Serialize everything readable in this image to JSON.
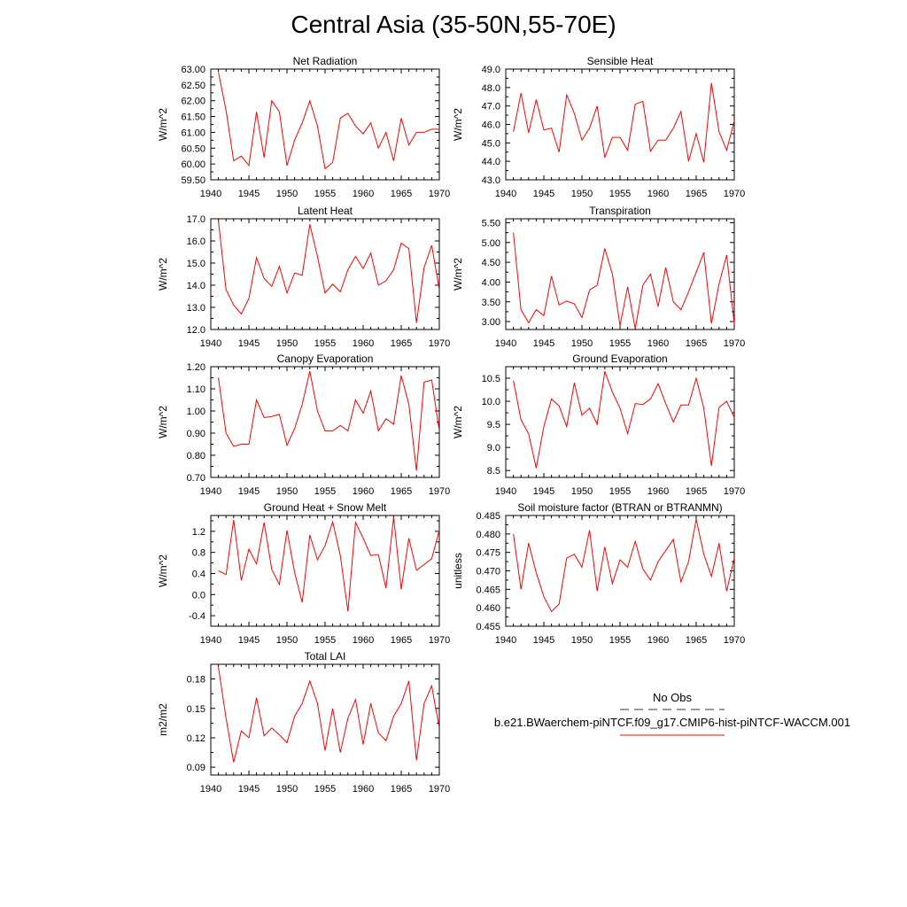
{
  "title": "Central Asia (35-50N,55-70E)",
  "legend": {
    "entries": [
      {
        "label": "No Obs",
        "color": "#333333",
        "dash": true
      },
      {
        "label": "b.e21.BWaerchem-piNTCF.f09_g17.CMIP6-hist-piNTCF-WACCM.001",
        "color": "#ff0000",
        "dash": false
      }
    ]
  },
  "chart_data": [
    {
      "type": "line",
      "title": "Net Radiation",
      "ylabel": "W/m^2",
      "xlim": [
        1940,
        1970
      ],
      "ylim": [
        59.5,
        63.0
      ],
      "xticks": [
        1940,
        1945,
        1950,
        1955,
        1960,
        1965,
        1970
      ],
      "yticks": [
        59.5,
        60.0,
        60.5,
        61.0,
        61.5,
        62.0,
        62.5,
        63.0
      ],
      "ytick_labels": [
        "59.50",
        "60.00",
        "60.50",
        "61.00",
        "61.50",
        "62.00",
        "62.50",
        "63.00"
      ],
      "series": [
        {
          "color": "#ff0000",
          "x": [
            1941,
            1942,
            1943,
            1944,
            1945,
            1946,
            1947,
            1948,
            1949,
            1950,
            1951,
            1952,
            1953,
            1954,
            1955,
            1956,
            1957,
            1958,
            1959,
            1960,
            1961,
            1962,
            1963,
            1964,
            1965,
            1966,
            1967,
            1968,
            1969,
            1970
          ],
          "y": [
            62.9,
            61.7,
            60.1,
            60.25,
            59.95,
            61.65,
            60.2,
            62.0,
            61.65,
            59.95,
            60.75,
            61.3,
            62.0,
            61.2,
            59.85,
            60.05,
            61.45,
            61.6,
            61.2,
            60.95,
            61.3,
            60.5,
            61.0,
            60.1,
            61.45,
            60.6,
            61.0,
            61.0,
            61.1,
            61.1
          ]
        }
      ]
    },
    {
      "type": "line",
      "title": "Sensible Heat",
      "ylabel": "W/m^2",
      "xlim": [
        1940,
        1970
      ],
      "ylim": [
        43.0,
        49.0
      ],
      "xticks": [
        1940,
        1945,
        1950,
        1955,
        1960,
        1965,
        1970
      ],
      "yticks": [
        43,
        44,
        45,
        46,
        47,
        48,
        49
      ],
      "ytick_labels": [
        "43.0",
        "44.0",
        "45.0",
        "46.0",
        "47.0",
        "48.0",
        "49.0"
      ],
      "series": [
        {
          "color": "#ff0000",
          "x": [
            1941,
            1942,
            1943,
            1944,
            1945,
            1946,
            1947,
            1948,
            1949,
            1950,
            1951,
            1952,
            1953,
            1954,
            1955,
            1956,
            1957,
            1958,
            1959,
            1960,
            1961,
            1962,
            1963,
            1964,
            1965,
            1966,
            1967,
            1968,
            1969,
            1970
          ],
          "y": [
            45.6,
            47.7,
            45.55,
            47.35,
            45.7,
            45.8,
            44.5,
            47.6,
            46.6,
            45.15,
            45.8,
            47.0,
            44.2,
            45.3,
            45.3,
            44.6,
            47.1,
            47.25,
            44.55,
            45.15,
            45.15,
            45.8,
            46.7,
            44.0,
            45.5,
            43.95,
            48.25,
            45.6,
            44.6,
            46.2
          ]
        }
      ]
    },
    {
      "type": "line",
      "title": "Latent Heat",
      "ylabel": "W/m^2",
      "xlim": [
        1940,
        1970
      ],
      "ylim": [
        12.0,
        17.0
      ],
      "xticks": [
        1940,
        1945,
        1950,
        1955,
        1960,
        1965,
        1970
      ],
      "yticks": [
        12,
        13,
        14,
        15,
        16,
        17
      ],
      "ytick_labels": [
        "12.0",
        "13.0",
        "14.0",
        "15.0",
        "16.0",
        "17.0"
      ],
      "series": [
        {
          "color": "#ff0000",
          "x": [
            1941,
            1942,
            1943,
            1944,
            1945,
            1946,
            1947,
            1948,
            1949,
            1950,
            1951,
            1952,
            1953,
            1954,
            1955,
            1956,
            1957,
            1958,
            1959,
            1960,
            1961,
            1962,
            1963,
            1964,
            1965,
            1966,
            1967,
            1968,
            1969,
            1970
          ],
          "y": [
            16.9,
            13.8,
            13.1,
            12.7,
            13.4,
            15.25,
            14.3,
            13.95,
            14.85,
            13.65,
            14.55,
            14.45,
            16.75,
            15.3,
            13.65,
            14.05,
            13.7,
            14.7,
            15.3,
            14.75,
            15.45,
            14.0,
            14.2,
            14.7,
            15.9,
            15.65,
            12.3,
            14.8,
            15.8,
            13.8
          ]
        }
      ]
    },
    {
      "type": "line",
      "title": "Transpiration",
      "ylabel": "W/m^2",
      "xlim": [
        1940,
        1970
      ],
      "ylim": [
        2.8,
        5.6
      ],
      "xticks": [
        1940,
        1945,
        1950,
        1955,
        1960,
        1965,
        1970
      ],
      "yticks": [
        3.0,
        3.5,
        4.0,
        4.5,
        5.0,
        5.5
      ],
      "ytick_labels": [
        "3.00",
        "3.50",
        "4.00",
        "4.50",
        "5.00",
        "5.50"
      ],
      "series": [
        {
          "color": "#ff0000",
          "x": [
            1941,
            1942,
            1943,
            1944,
            1945,
            1946,
            1947,
            1948,
            1949,
            1950,
            1951,
            1952,
            1953,
            1954,
            1955,
            1956,
            1957,
            1958,
            1959,
            1960,
            1961,
            1962,
            1963,
            1964,
            1965,
            1966,
            1967,
            1968,
            1969,
            1970
          ],
          "y": [
            5.25,
            3.3,
            2.97,
            3.3,
            3.15,
            4.15,
            3.42,
            3.52,
            3.45,
            3.1,
            3.8,
            3.92,
            4.85,
            4.2,
            2.9,
            3.88,
            2.82,
            3.92,
            4.2,
            3.38,
            4.37,
            3.5,
            3.3,
            3.75,
            4.25,
            4.75,
            2.95,
            3.95,
            4.68,
            2.95
          ]
        }
      ]
    },
    {
      "type": "line",
      "title": "Canopy Evaporation",
      "ylabel": "W/m^2",
      "xlim": [
        1940,
        1970
      ],
      "ylim": [
        0.7,
        1.2
      ],
      "xticks": [
        1940,
        1945,
        1950,
        1955,
        1960,
        1965,
        1970
      ],
      "yticks": [
        0.7,
        0.8,
        0.9,
        1.0,
        1.1,
        1.2
      ],
      "ytick_labels": [
        "0.70",
        "0.80",
        "0.90",
        "1.00",
        "1.10",
        "1.20"
      ],
      "series": [
        {
          "color": "#ff0000",
          "x": [
            1941,
            1942,
            1943,
            1944,
            1945,
            1946,
            1947,
            1948,
            1949,
            1950,
            1951,
            1952,
            1953,
            1954,
            1955,
            1956,
            1957,
            1958,
            1959,
            1960,
            1961,
            1962,
            1963,
            1964,
            1965,
            1966,
            1967,
            1968,
            1969,
            1970
          ],
          "y": [
            1.15,
            0.9,
            0.84,
            0.85,
            0.85,
            1.05,
            0.97,
            0.975,
            0.985,
            0.845,
            0.92,
            1.03,
            1.18,
            1.0,
            0.91,
            0.91,
            0.935,
            0.91,
            1.05,
            0.99,
            1.09,
            0.91,
            0.965,
            0.94,
            1.16,
            1.03,
            0.73,
            1.13,
            1.14,
            0.91
          ]
        }
      ]
    },
    {
      "type": "line",
      "title": "Ground Evaporation",
      "ylabel": "W/m^2",
      "xlim": [
        1940,
        1970
      ],
      "ylim": [
        8.35,
        10.75
      ],
      "xticks": [
        1940,
        1945,
        1950,
        1955,
        1960,
        1965,
        1970
      ],
      "yticks": [
        8.5,
        9.0,
        9.5,
        10.0,
        10.5
      ],
      "ytick_labels": [
        "8.5",
        "9.0",
        "9.5",
        "10.0",
        "10.5"
      ],
      "series": [
        {
          "color": "#ff0000",
          "x": [
            1941,
            1942,
            1943,
            1944,
            1945,
            1946,
            1947,
            1948,
            1949,
            1950,
            1951,
            1952,
            1953,
            1954,
            1955,
            1956,
            1957,
            1958,
            1959,
            1960,
            1961,
            1962,
            1963,
            1964,
            1965,
            1966,
            1967,
            1968,
            1969,
            1970
          ],
          "y": [
            10.45,
            9.6,
            9.3,
            8.55,
            9.45,
            10.05,
            9.9,
            9.45,
            10.4,
            9.7,
            9.85,
            9.5,
            10.65,
            10.2,
            9.85,
            9.3,
            9.95,
            9.93,
            10.05,
            10.38,
            9.95,
            9.55,
            9.92,
            9.92,
            10.5,
            9.85,
            8.6,
            9.87,
            10.0,
            9.65
          ]
        }
      ]
    },
    {
      "type": "line",
      "title": "Ground Heat + Snow Melt",
      "ylabel": "W/m^2",
      "xlim": [
        1940,
        1970
      ],
      "ylim": [
        -0.6,
        1.5
      ],
      "xticks": [
        1940,
        1945,
        1950,
        1955,
        1960,
        1965,
        1970
      ],
      "yticks": [
        -0.4,
        0.0,
        0.4,
        0.8,
        1.2
      ],
      "ytick_labels": [
        "-0.4",
        "0.0",
        "0.4",
        "0.8",
        "1.2"
      ],
      "series": [
        {
          "color": "#ff0000",
          "x": [
            1941,
            1942,
            1943,
            1944,
            1945,
            1946,
            1947,
            1948,
            1949,
            1950,
            1951,
            1952,
            1953,
            1954,
            1955,
            1956,
            1957,
            1958,
            1959,
            1960,
            1961,
            1962,
            1963,
            1964,
            1965,
            1966,
            1967,
            1968,
            1969,
            1970
          ],
          "y": [
            0.45,
            0.38,
            1.42,
            0.27,
            0.86,
            0.58,
            1.37,
            0.48,
            0.19,
            1.22,
            0.42,
            -0.15,
            1.13,
            0.66,
            0.93,
            1.38,
            0.74,
            -0.32,
            1.37,
            1.07,
            0.74,
            0.76,
            0.12,
            1.47,
            0.1,
            1.07,
            0.46,
            0.57,
            0.68,
            1.22
          ]
        }
      ]
    },
    {
      "type": "line",
      "title": "Soil moisture factor (BTRAN or BTRANMN)",
      "ylabel": "unitless",
      "xlim": [
        1940,
        1970
      ],
      "ylim": [
        0.455,
        0.485
      ],
      "xticks": [
        1940,
        1945,
        1950,
        1955,
        1960,
        1965,
        1970
      ],
      "yticks": [
        0.455,
        0.46,
        0.465,
        0.47,
        0.475,
        0.48,
        0.485
      ],
      "ytick_labels": [
        "0.455",
        "0.460",
        "0.465",
        "0.470",
        "0.475",
        "0.480",
        "0.485"
      ],
      "series": [
        {
          "color": "#ff0000",
          "x": [
            1941,
            1942,
            1943,
            1944,
            1945,
            1946,
            1947,
            1948,
            1949,
            1950,
            1951,
            1952,
            1953,
            1954,
            1955,
            1956,
            1957,
            1958,
            1959,
            1960,
            1961,
            1962,
            1963,
            1964,
            1965,
            1966,
            1967,
            1968,
            1969,
            1970
          ],
          "y": [
            0.48,
            0.465,
            0.4775,
            0.4695,
            0.463,
            0.459,
            0.461,
            0.4735,
            0.4745,
            0.471,
            0.481,
            0.4645,
            0.4765,
            0.4665,
            0.473,
            0.471,
            0.478,
            0.4705,
            0.4675,
            0.4725,
            0.4755,
            0.4785,
            0.467,
            0.4725,
            0.484,
            0.4745,
            0.4685,
            0.4775,
            0.4645,
            0.4735
          ]
        }
      ]
    },
    {
      "type": "line",
      "title": "Total LAI",
      "ylabel": "m2/m2",
      "xlim": [
        1940,
        1970
      ],
      "ylim": [
        0.082,
        0.195
      ],
      "xticks": [
        1940,
        1945,
        1950,
        1955,
        1960,
        1965,
        1970
      ],
      "yticks": [
        0.09,
        0.12,
        0.15,
        0.18
      ],
      "ytick_labels": [
        "0.09",
        "0.12",
        "0.15",
        "0.18"
      ],
      "series": [
        {
          "color": "#ff0000",
          "x": [
            1941,
            1942,
            1943,
            1944,
            1945,
            1946,
            1947,
            1948,
            1949,
            1950,
            1951,
            1952,
            1953,
            1954,
            1955,
            1956,
            1957,
            1958,
            1959,
            1960,
            1961,
            1962,
            1963,
            1964,
            1965,
            1966,
            1967,
            1968,
            1969,
            1970
          ],
          "y": [
            0.192,
            0.14,
            0.095,
            0.127,
            0.12,
            0.161,
            0.122,
            0.13,
            0.123,
            0.115,
            0.142,
            0.155,
            0.178,
            0.155,
            0.107,
            0.15,
            0.105,
            0.14,
            0.159,
            0.113,
            0.155,
            0.125,
            0.117,
            0.142,
            0.155,
            0.178,
            0.097,
            0.155,
            0.173,
            0.13
          ]
        }
      ]
    }
  ]
}
